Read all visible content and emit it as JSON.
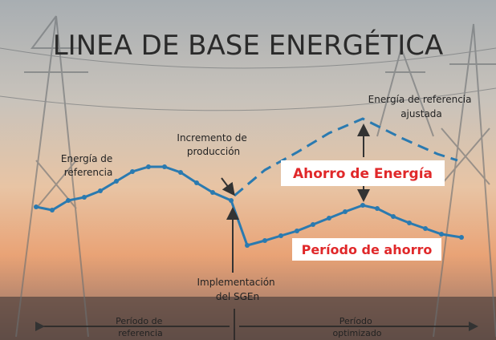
{
  "title": "LINEA DE BASE ENERGÉTICA",
  "labels": {
    "reference_energy": [
      "Energía de",
      "referencia"
    ],
    "production_increase": [
      "Incremento de",
      "producción"
    ],
    "adjusted_reference": [
      "Energía de referencia",
      "ajustada"
    ],
    "energy_saving": "Ahorro de Energía",
    "saving_period": "Período de ahorro",
    "implementation": [
      "Implementación",
      "del SGEn"
    ],
    "reference_period": [
      "Período de",
      "referencia"
    ],
    "optimized_period": [
      "Período",
      "optimizado"
    ]
  }
}
